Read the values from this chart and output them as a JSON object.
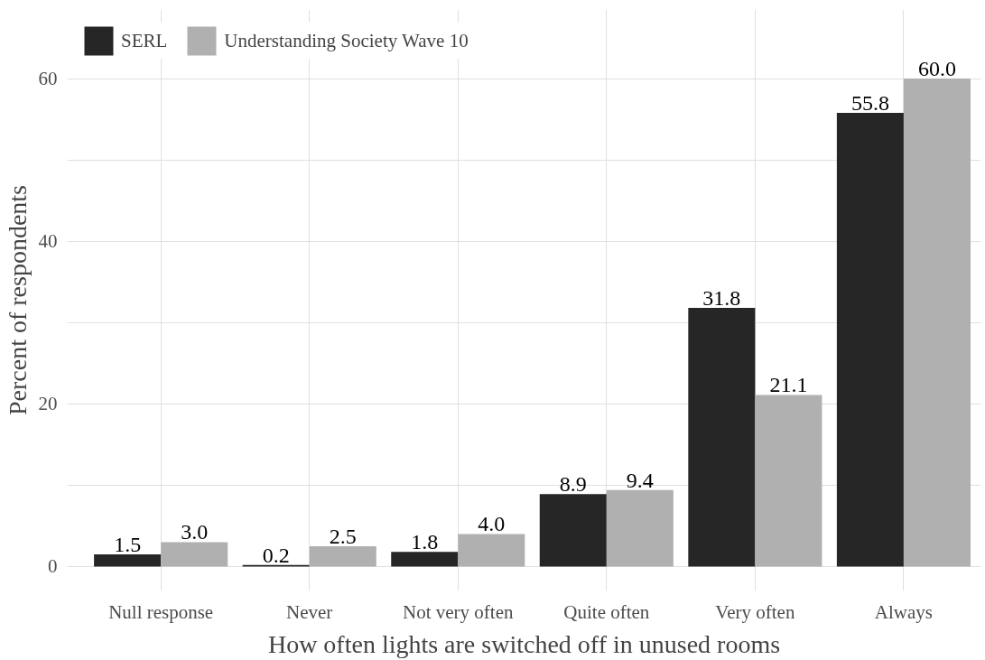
{
  "chart_data": {
    "type": "bar",
    "xlabel": "How often lights are switched off in unused rooms",
    "ylabel": "Percent of respondents",
    "categories": [
      "Null response",
      "Never",
      "Not very often",
      "Quite often",
      "Very often",
      "Always"
    ],
    "series": [
      {
        "name": "SERL",
        "color": "#262626",
        "values": [
          1.5,
          0.2,
          1.8,
          8.9,
          31.8,
          55.8
        ],
        "value_labels": [
          "1.5",
          "0.2",
          "1.8",
          "8.9",
          "31.8",
          "55.8"
        ]
      },
      {
        "name": "Understanding Society Wave 10",
        "color": "#b0b0b0",
        "values": [
          3,
          2.5,
          4,
          9.4,
          21.1,
          60
        ],
        "value_labels": [
          "3.0",
          "2.5",
          "4.0",
          "9.4",
          "21.1",
          "60.0"
        ]
      }
    ],
    "ylim": [
      -3,
      68.5
    ],
    "yticks": [
      0,
      {
        "value": 10,
        "label": null
      },
      20,
      {
        "value": 30,
        "label": null
      },
      40,
      {
        "value": 50,
        "label": null
      },
      60
    ],
    "grid": true,
    "legend": "top left"
  }
}
